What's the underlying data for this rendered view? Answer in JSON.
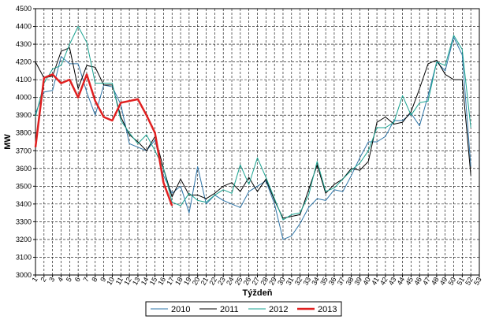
{
  "chart_data": {
    "type": "line",
    "xlabel": "Týždeň",
    "ylabel": "MW",
    "xlim": [
      1,
      53
    ],
    "ylim": [
      3000,
      4500
    ],
    "y_ticks": [
      3000,
      3100,
      3200,
      3300,
      3400,
      3500,
      3600,
      3700,
      3800,
      3900,
      4000,
      4100,
      4200,
      4300,
      4400,
      4500
    ],
    "x_ticks": [
      1,
      2,
      3,
      4,
      5,
      6,
      7,
      8,
      9,
      10,
      11,
      12,
      13,
      14,
      15,
      16,
      17,
      18,
      19,
      20,
      21,
      22,
      23,
      24,
      25,
      26,
      27,
      28,
      29,
      30,
      31,
      32,
      33,
      34,
      35,
      36,
      37,
      38,
      39,
      40,
      41,
      42,
      43,
      44,
      45,
      46,
      47,
      48,
      49,
      50,
      51,
      52,
      53
    ],
    "grid": "dashed",
    "legend_position": "bottom",
    "series": [
      {
        "name": "2010",
        "color": "#2E75A8",
        "width": 1,
        "x": [
          1,
          2,
          3,
          4,
          5,
          6,
          7,
          8,
          9,
          10,
          11,
          12,
          13,
          14,
          15,
          16,
          17,
          18,
          19,
          20,
          21,
          22,
          23,
          24,
          25,
          26,
          27,
          28,
          29,
          30,
          31,
          32,
          33,
          34,
          35,
          36,
          37,
          38,
          39,
          40,
          41,
          42,
          43,
          44,
          45,
          46,
          47,
          48,
          49,
          50,
          51,
          52
        ],
        "values": [
          3910,
          4030,
          4040,
          4230,
          4190,
          4190,
          4030,
          3900,
          4070,
          4060,
          3960,
          3740,
          3720,
          3700,
          3760,
          3560,
          3460,
          3500,
          3350,
          3610,
          3400,
          3450,
          3420,
          3400,
          3380,
          3470,
          3500,
          3530,
          3400,
          3200,
          3220,
          3290,
          3380,
          3430,
          3420,
          3480,
          3470,
          3560,
          3660,
          3750,
          3750,
          3780,
          3870,
          3870,
          3910,
          3840,
          4010,
          4200,
          4150,
          4340,
          4240,
          3610
        ]
      },
      {
        "name": "2011",
        "color": "#000000",
        "width": 1,
        "x": [
          1,
          2,
          3,
          4,
          5,
          6,
          7,
          8,
          9,
          10,
          11,
          12,
          13,
          14,
          15,
          16,
          17,
          18,
          19,
          20,
          21,
          22,
          23,
          24,
          25,
          26,
          27,
          28,
          29,
          30,
          31,
          32,
          33,
          34,
          35,
          36,
          37,
          38,
          39,
          40,
          41,
          42,
          43,
          44,
          45,
          46,
          47,
          48,
          49,
          50,
          51,
          52
        ],
        "values": [
          4200,
          4110,
          4120,
          4260,
          4280,
          4050,
          4180,
          4170,
          4070,
          4070,
          3890,
          3790,
          3750,
          3700,
          3780,
          3600,
          3440,
          3540,
          3450,
          3450,
          3430,
          3460,
          3500,
          3520,
          3470,
          3550,
          3470,
          3540,
          3420,
          3320,
          3330,
          3340,
          3480,
          3620,
          3460,
          3510,
          3540,
          3600,
          3590,
          3640,
          3860,
          3890,
          3850,
          3860,
          3920,
          4050,
          4190,
          4210,
          4130,
          4100,
          4100,
          3560
        ]
      },
      {
        "name": "2012",
        "color": "#1AA390",
        "width": 1,
        "x": [
          1,
          2,
          3,
          4,
          5,
          6,
          7,
          8,
          9,
          10,
          11,
          12,
          13,
          14,
          15,
          16,
          17,
          18,
          19,
          20,
          21,
          22,
          23,
          24,
          25,
          26,
          27,
          28,
          29,
          30,
          31,
          32,
          33,
          34,
          35,
          36,
          37,
          38,
          39,
          40,
          41,
          42,
          43,
          44,
          45,
          46,
          47,
          48,
          49,
          50,
          51,
          52
        ],
        "values": [
          3890,
          4080,
          4160,
          4180,
          4300,
          4400,
          4310,
          4080,
          4080,
          4080,
          3870,
          3800,
          3740,
          3790,
          3700,
          3600,
          3410,
          3390,
          3460,
          3420,
          3410,
          3450,
          3480,
          3460,
          3620,
          3510,
          3660,
          3550,
          3430,
          3310,
          3340,
          3350,
          3450,
          3640,
          3470,
          3490,
          3540,
          3590,
          3630,
          3700,
          3830,
          3830,
          3860,
          4010,
          3900,
          3970,
          3980,
          4200,
          4180,
          4350,
          4270,
          3830
        ]
      },
      {
        "name": "2013",
        "color": "#E02020",
        "width": 2.5,
        "x": [
          1,
          2,
          3,
          4,
          5,
          6,
          7,
          8,
          9,
          10,
          11,
          12,
          13,
          14,
          15,
          16,
          17
        ],
        "values": [
          3720,
          4110,
          4130,
          4080,
          4100,
          4000,
          4130,
          3980,
          3890,
          3870,
          3970,
          3980,
          3990,
          3900,
          3800,
          3520,
          3390
        ]
      }
    ]
  }
}
